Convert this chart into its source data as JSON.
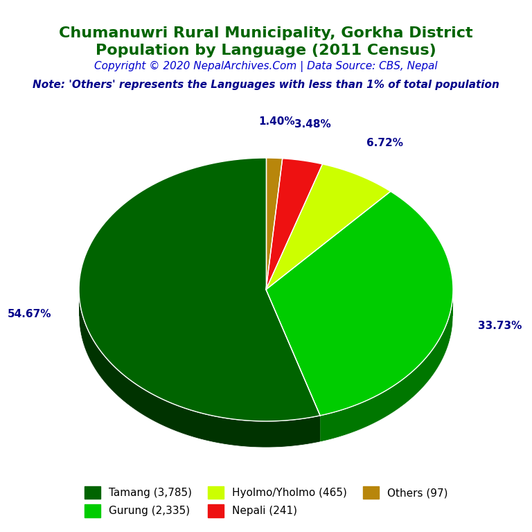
{
  "title_line1": "Chumanuwri Rural Municipality, Gorkha District",
  "title_line2": "Population by Language (2011 Census)",
  "title_color": "#006400",
  "copyright_text": "Copyright © 2020 NepalArchives.Com | Data Source: CBS, Nepal",
  "copyright_color": "#0000CD",
  "note_text": "Note: 'Others' represents the Languages with less than 1% of total population",
  "note_color": "#00008B",
  "labels": [
    "Tamang (3,785)",
    "Gurung (2,335)",
    "Hyolmo/Yholmo (465)",
    "Nepali (241)",
    "Others (97)"
  ],
  "values": [
    3785,
    2335,
    465,
    241,
    97
  ],
  "percentages": [
    "54.67%",
    "33.73%",
    "6.72%",
    "3.48%",
    "1.40%"
  ],
  "colors": [
    "#006400",
    "#00CC00",
    "#CCFF00",
    "#EE1111",
    "#B8860B"
  ],
  "dark_colors": [
    "#003300",
    "#007700",
    "#88AA00",
    "#990000",
    "#7A5900"
  ],
  "pct_color": "#00008B",
  "title_fontsize": 16,
  "copyright_fontsize": 11,
  "note_fontsize": 11,
  "pct_fontsize": 11,
  "legend_fontsize": 11
}
